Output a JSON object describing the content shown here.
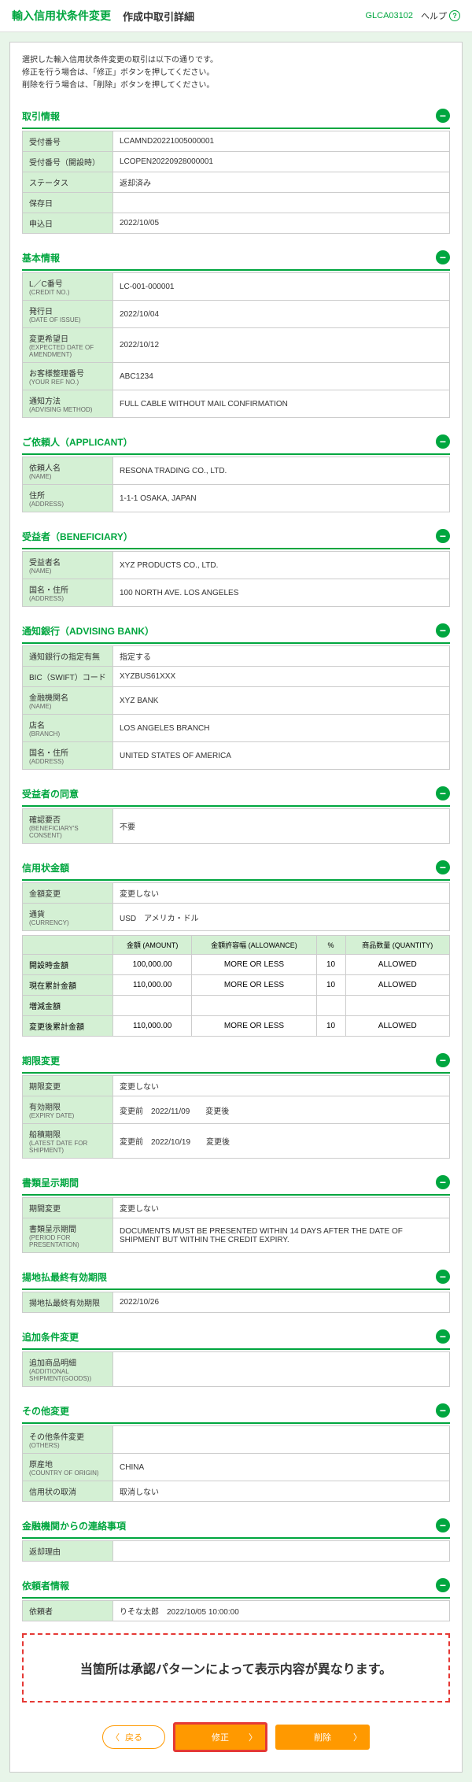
{
  "header": {
    "titleMain": "輸入信用状条件変更",
    "titleSub": "作成中取引詳細",
    "code": "GLCA03102",
    "help": "ヘルプ"
  },
  "intro": [
    "選択した輸入信用状条件変更の取引は以下の通りです。",
    "修正を行う場合は、「修正」ボタンを押してください。",
    "削除を行う場合は、「削除」ボタンを押してください。"
  ],
  "sections": {
    "transaction": {
      "title": "取引情報",
      "rows": [
        {
          "label": "受付番号",
          "value": "LCAMND20221005000001"
        },
        {
          "label": "受付番号（開設時）",
          "value": "LCOPEN20220928000001"
        },
        {
          "label": "ステータス",
          "value": "返却済み"
        },
        {
          "label": "保存日",
          "value": ""
        },
        {
          "label": "申込日",
          "value": "2022/10/05"
        }
      ]
    },
    "basic": {
      "title": "基本情報",
      "rows": [
        {
          "label": "L／C番号",
          "sub": "(CREDIT NO.)",
          "value": "LC-001-000001"
        },
        {
          "label": "発行日",
          "sub": "(DATE OF ISSUE)",
          "value": "2022/10/04"
        },
        {
          "label": "変更希望日",
          "sub": "(EXPECTED DATE OF AMENDMENT)",
          "value": "2022/10/12"
        },
        {
          "label": "お客様整理番号",
          "sub": "(YOUR REF NO.)",
          "value": "ABC1234"
        },
        {
          "label": "通知方法",
          "sub": "(ADVISING METHOD)",
          "value": "FULL CABLE WITHOUT MAIL CONFIRMATION"
        }
      ]
    },
    "applicant": {
      "title": "ご依頼人（APPLICANT）",
      "rows": [
        {
          "label": "依頼人名",
          "sub": "(NAME)",
          "value": "RESONA TRADING CO., LTD."
        },
        {
          "label": "住所",
          "sub": "(ADDRESS)",
          "value": "1-1-1 OSAKA, JAPAN"
        }
      ]
    },
    "beneficiary": {
      "title": "受益者（BENEFICIARY）",
      "rows": [
        {
          "label": "受益者名",
          "sub": "(NAME)",
          "value": "XYZ PRODUCTS CO., LTD."
        },
        {
          "label": "国名・住所",
          "sub": "(ADDRESS)",
          "value": "100 NORTH AVE. LOS ANGELES"
        }
      ]
    },
    "advising": {
      "title": "通知銀行（ADVISING BANK）",
      "rows": [
        {
          "label": "通知銀行の指定有無",
          "value": "指定する"
        },
        {
          "label": "BIC（SWIFT）コード",
          "value": "XYZBUS61XXX"
        },
        {
          "label": "金融機関名",
          "sub": "(NAME)",
          "value": "XYZ BANK"
        },
        {
          "label": "店名",
          "sub": "(BRANCH)",
          "value": "LOS ANGELES BRANCH"
        },
        {
          "label": "国名・住所",
          "sub": "(ADDRESS)",
          "value": "UNITED STATES OF AMERICA"
        }
      ]
    },
    "consent": {
      "title": "受益者の同意",
      "rows": [
        {
          "label": "確認要否",
          "sub": "(BENEFICIARY'S CONSENT)",
          "value": "不要"
        }
      ]
    },
    "amount": {
      "title": "信用状金額",
      "rows": [
        {
          "label": "金額変更",
          "value": "変更しない"
        },
        {
          "label": "通貨",
          "sub": "(CURRENCY)",
          "value": "USD　アメリカ・ドル"
        }
      ],
      "headers": [
        "金額 (AMOUNT)",
        "金額許容幅 (ALLOWANCE)",
        "%",
        "商品数量 (QUANTITY)"
      ],
      "amountRows": [
        {
          "label": "開設時金額",
          "amount": "100,000.00",
          "allow": "MORE OR LESS",
          "pct": "10",
          "qty": "ALLOWED"
        },
        {
          "label": "現在累計金額",
          "amount": "110,000.00",
          "allow": "MORE OR LESS",
          "pct": "10",
          "qty": "ALLOWED"
        },
        {
          "label": "増減金額",
          "amount": "",
          "allow": "",
          "pct": "",
          "qty": ""
        },
        {
          "label": "変更後累計金額",
          "amount": "110,000.00",
          "allow": "MORE OR LESS",
          "pct": "10",
          "qty": "ALLOWED"
        }
      ]
    },
    "period": {
      "title": "期限変更",
      "rows": [
        {
          "label": "期限変更",
          "value": "変更しない"
        },
        {
          "label": "有効期限",
          "sub": "(EXPIRY DATE)",
          "value": "変更前　2022/11/09　　変更後"
        },
        {
          "label": "船積期限",
          "sub": "(LATEST DATE FOR SHIPMENT)",
          "value": "変更前　2022/10/19　　変更後"
        }
      ]
    },
    "docPeriod": {
      "title": "書類呈示期間",
      "rows": [
        {
          "label": "期間変更",
          "value": "変更しない"
        },
        {
          "label": "書類呈示期間",
          "sub": "(PERIOD FOR PRESENTATION)",
          "value": "DOCUMENTS MUST BE PRESENTED WITHIN 14 DAYS AFTER THE DATE OF SHIPMENT BUT WITHIN THE CREDIT EXPIRY."
        }
      ]
    },
    "usance": {
      "title": "揚地払最終有効期限",
      "rows": [
        {
          "label": "揚地払最終有効期限",
          "value": "2022/10/26"
        }
      ]
    },
    "additional": {
      "title": "追加条件変更",
      "rows": [
        {
          "label": "追加商品明細",
          "sub": "(ADDITIONAL SHIPMENT(GOODS))",
          "value": ""
        }
      ]
    },
    "other": {
      "title": "その他変更",
      "rows": [
        {
          "label": "その他条件変更",
          "sub": "(OTHERS)",
          "value": ""
        },
        {
          "label": "原産地",
          "sub": "(COUNTRY OF ORIGIN)",
          "value": "CHINA"
        },
        {
          "label": "信用状の取消",
          "value": "取消しない"
        }
      ]
    },
    "bank": {
      "title": "金融機関からの連絡事項",
      "rows": [
        {
          "label": "返却理由",
          "value": ""
        }
      ]
    },
    "requester": {
      "title": "依頼者情報",
      "rows": [
        {
          "label": "依頼者",
          "value": "りそな太郎　2022/10/05 10:00:00"
        }
      ]
    }
  },
  "notice": "当箇所は承認パターンによって表示内容が異なります。",
  "buttons": {
    "back": "戻る",
    "edit": "修正",
    "delete": "削除"
  }
}
